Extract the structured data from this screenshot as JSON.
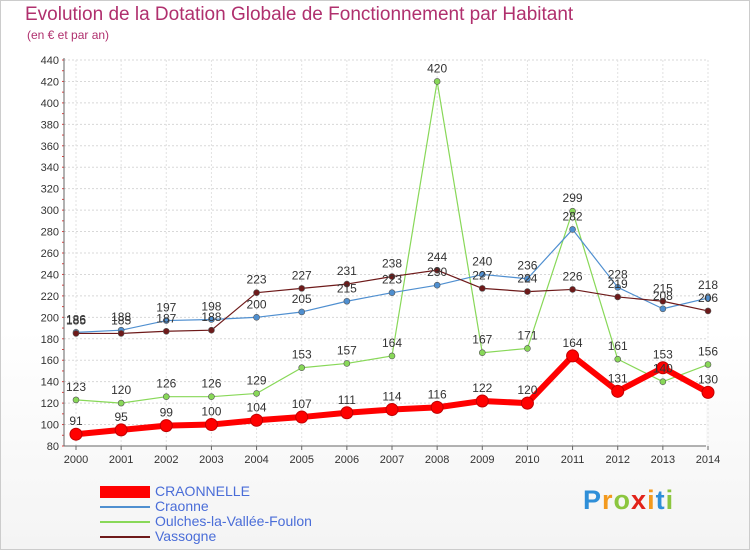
{
  "chart_data": {
    "type": "line",
    "title": "Evolution de la Dotation Globale de Fonctionnement par Habitant",
    "subtitle": "(en € et par an)",
    "xlabel": "",
    "ylabel": "",
    "categories": [
      "2000",
      "2001",
      "2002",
      "2003",
      "2004",
      "2005",
      "2006",
      "2007",
      "2008",
      "2009",
      "2010",
      "2011",
      "2012",
      "2013",
      "2014"
    ],
    "ylim": [
      80,
      440
    ],
    "yticks": [
      80,
      100,
      120,
      140,
      160,
      180,
      200,
      220,
      240,
      260,
      280,
      300,
      320,
      340,
      360,
      380,
      400,
      420,
      440
    ],
    "grid": true,
    "legend_position": "bottom-left",
    "series": [
      {
        "name": "CRAONNELLE",
        "color": "#ff0000",
        "values": [
          91,
          95,
          99,
          100,
          104,
          107,
          111,
          114,
          116,
          122,
          120,
          164,
          131,
          153,
          130
        ]
      },
      {
        "name": "Craonne",
        "color": "#4f8fd0",
        "values": [
          186,
          188,
          197,
          198,
          200,
          205,
          215,
          223,
          230,
          240,
          236,
          282,
          228,
          208,
          218
        ]
      },
      {
        "name": "Oulches-la-Vallée-Foulon",
        "color": "#88d858",
        "values": [
          123,
          120,
          126,
          126,
          129,
          153,
          157,
          164,
          420,
          167,
          171,
          299,
          161,
          140,
          156
        ]
      },
      {
        "name": "Vassogne",
        "color": "#6e1a1a",
        "values": [
          185,
          185,
          187,
          188,
          223,
          227,
          231,
          238,
          244,
          227,
          224,
          226,
          219,
          215,
          206
        ]
      }
    ],
    "point_labels": [
      {
        "series": 0,
        "values": [
          91,
          95,
          99,
          100,
          104,
          107,
          111,
          114,
          116,
          122,
          120,
          164,
          131,
          153,
          130
        ]
      },
      {
        "series": 1,
        "values": [
          186,
          188,
          197,
          198,
          200,
          205,
          215,
          223,
          230,
          240,
          236,
          282,
          228,
          208,
          218
        ]
      },
      {
        "series": 2,
        "values": [
          123,
          120,
          126,
          126,
          129,
          153,
          157,
          164,
          420,
          167,
          171,
          299,
          161,
          140,
          156
        ]
      },
      {
        "series": 3,
        "values": [
          185,
          185,
          187,
          188,
          223,
          227,
          231,
          238,
          244,
          227,
          224,
          226,
          219,
          215,
          206
        ]
      }
    ]
  },
  "brand": {
    "letters": [
      "P",
      "r",
      "o",
      "x",
      "i",
      "t",
      "i"
    ],
    "colors": [
      "#2f8fd8",
      "#f39a1e",
      "#8cc63f",
      "#e2231a",
      "#f39a1e",
      "#2f8fd8",
      "#8cc63f"
    ]
  }
}
